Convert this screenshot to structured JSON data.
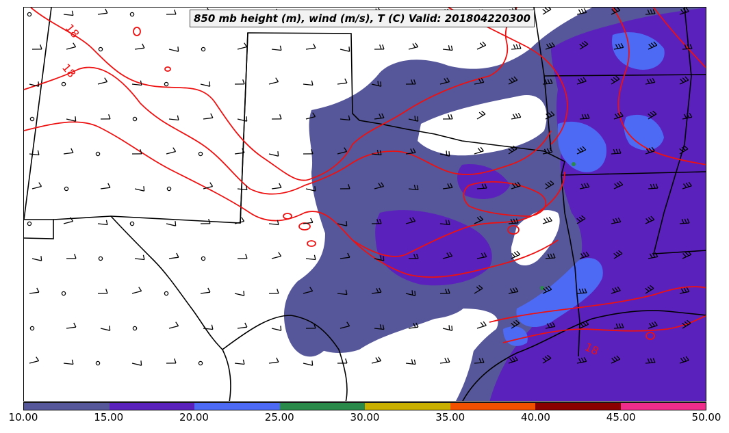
{
  "title": "850 mb height (m), wind (m/s), T (C) Valid: 201804220300",
  "colorbar": {
    "ticks": [
      "10.00",
      "15.00",
      "20.00",
      "25.00",
      "30.00",
      "35.00",
      "40.00",
      "45.00",
      "50.00"
    ],
    "colors": [
      "#56569a",
      "#5b21bd",
      "#4d6af5",
      "#2a8a4a",
      "#c9b000",
      "#f05000",
      "#8a0000",
      "#f02d8a"
    ]
  },
  "contour_labels": [
    "18",
    "18",
    "18"
  ],
  "colors": {
    "isotherm": "#ee1111",
    "boundary": "#000000",
    "wind_barb": "#000000"
  }
}
